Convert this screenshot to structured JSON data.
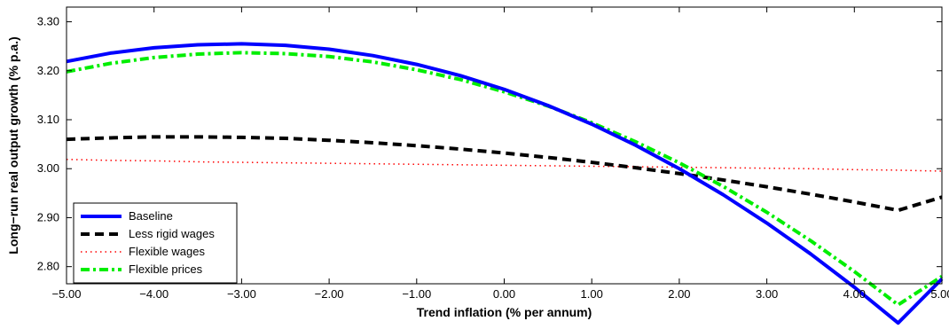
{
  "chart_data": {
    "type": "line",
    "xlabel": "Trend inflation (% per annum)",
    "ylabel": "Long−run real output growth (% p.a.)",
    "xlim": [
      -5.0,
      5.0
    ],
    "ylim": [
      2.765,
      3.33
    ],
    "x_ticks": [
      -5,
      -4,
      -3,
      -2,
      -1,
      0,
      1,
      2,
      3,
      4,
      5
    ],
    "x_tick_labels": [
      "−5.00",
      "−4.00",
      "−3.00",
      "−2.00",
      "−1.00",
      "0.00",
      "1.00",
      "2.00",
      "3.00",
      "4.00",
      "5.00"
    ],
    "y_ticks": [
      2.8,
      2.9,
      3.0,
      3.1,
      3.2,
      3.3
    ],
    "y_tick_labels": [
      "2.80",
      "2.90",
      "3.00",
      "3.10",
      "3.20",
      "3.30"
    ],
    "grid": false,
    "legend_position": "bottom-left",
    "x": [
      -5,
      -4.5,
      -4,
      -3.5,
      -3,
      -2.5,
      -2,
      -1.5,
      -1,
      -0.5,
      0,
      0.5,
      1,
      1.5,
      2,
      2.5,
      3,
      3.5,
      4,
      4.5,
      5
    ],
    "series": [
      {
        "name": "Baseline",
        "color": "#0000ff",
        "style": "solid",
        "values": [
          3.219,
          3.236,
          3.247,
          3.253,
          3.255,
          3.252,
          3.244,
          3.231,
          3.213,
          3.19,
          3.162,
          3.129,
          3.091,
          3.048,
          3.0,
          2.947,
          2.889,
          2.826,
          2.758,
          2.685,
          2.775
        ]
      },
      {
        "name": "Less rigid wages",
        "color": "#000000",
        "style": "dashed",
        "values": [
          3.06,
          3.063,
          3.065,
          3.065,
          3.064,
          3.062,
          3.058,
          3.053,
          3.047,
          3.04,
          3.032,
          3.023,
          3.013,
          3.002,
          2.99,
          2.977,
          2.963,
          2.948,
          2.932,
          2.915,
          2.942
        ]
      },
      {
        "name": "Flexible wages",
        "color": "#ff0000",
        "style": "dotted",
        "values": [
          3.019,
          3.017,
          3.016,
          3.014,
          3.013,
          3.012,
          3.011,
          3.01,
          3.009,
          3.008,
          3.007,
          3.006,
          3.005,
          3.004,
          3.003,
          3.002,
          3.001,
          3.0,
          2.998,
          2.997,
          2.995
        ]
      },
      {
        "name": "Flexible prices",
        "color": "#00ee00",
        "style": "dashdot",
        "values": [
          3.198,
          3.215,
          3.227,
          3.234,
          3.237,
          3.235,
          3.229,
          3.218,
          3.202,
          3.182,
          3.157,
          3.128,
          3.094,
          3.055,
          3.012,
          2.964,
          2.911,
          2.853,
          2.79,
          2.722,
          2.78
        ]
      }
    ]
  }
}
